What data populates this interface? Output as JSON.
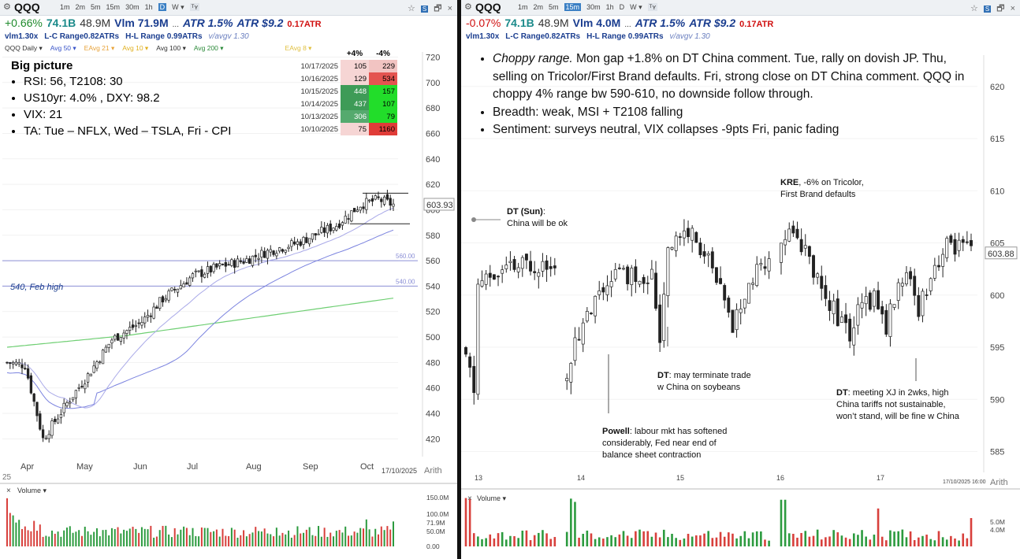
{
  "left": {
    "symbol": "QQQ",
    "toolbar": {
      "timeframes": [
        "1m",
        "2m",
        "5m",
        "15m",
        "30m",
        "1h",
        "D",
        "W"
      ],
      "active": "D",
      "menu_label": "W ▾",
      "chart_type_label": "ᵀʏ",
      "save_label": "S",
      "star": "☆",
      "restore": "🗗",
      "close": "×"
    },
    "stats": {
      "change": "+0.66%",
      "mktcap": "74.1B",
      "volume": "48.9M",
      "vlm": "Vlm 71.9M",
      "dots": "...",
      "atr": "ATR 1.5%",
      "atr_dollar": "ATR $9.2",
      "atr_ratio": "0.17ATR"
    },
    "substats": {
      "rvol": "vlm1.30x",
      "lc": "L-C Range0.82ATRs",
      "hl": "H-L Range 0.99ATRs",
      "avgv": "v/avgv 1.30"
    },
    "ma_legend": {
      "daily": "QQQ Daily ▾",
      "avg50": "Avg 50 ▾",
      "eavg21": "EAvg 21 ▾",
      "avg10": "Avg 10 ▾",
      "avg100": "Avg 100 ▾",
      "avg200": "Avg 200 ▾",
      "eavg8": "EAvg 8 ▾"
    },
    "big_picture": {
      "heading": "Big picture",
      "items": [
        "RSI: 56, T2108: 30",
        "US10yr: 4.0% , DXY: 98.2",
        "VIX: 21",
        "TA: Tue – NFLX, Wed – TSLA, Fri - CPI"
      ]
    },
    "perf_table": {
      "headers": [
        "+4%",
        "-4%"
      ],
      "rows": [
        {
          "date": "10/17/2025",
          "up": "105",
          "down": "229",
          "upc": "#f6d5d4",
          "downc": "#f2c4c2"
        },
        {
          "date": "10/16/2025",
          "up": "129",
          "down": "534",
          "upc": "#f6d5d4",
          "downc": "#e45450"
        },
        {
          "date": "10/15/2025",
          "up": "448",
          "down": "157",
          "upc": "#3e9b57",
          "downc": "#22dd2a"
        },
        {
          "date": "10/14/2025",
          "up": "437",
          "down": "107",
          "upc": "#3e9b57",
          "downc": "#22dd2a"
        },
        {
          "date": "10/13/2025",
          "up": "306",
          "down": "79",
          "upc": "#55aa6e",
          "downc": "#22dd2a"
        },
        {
          "date": "10/10/2025",
          "up": "75",
          "down": "1160",
          "upc": "#f6d5d4",
          "downc": "#e03c38"
        }
      ]
    },
    "annotation_feb_high": "540, Feb high",
    "price_label": "603.93",
    "footer_date": "17/10/2025",
    "footer_scale": "Arith",
    "footer_num": "25",
    "volume_title": "Volume ▾",
    "volume_close": "×",
    "volume_axis": [
      "150.0M",
      "100.0M",
      "71.9M",
      "50.0M",
      "0.00"
    ],
    "chart_data": {
      "type": "candlestick",
      "y_ticks": [
        720,
        700,
        680,
        660,
        640,
        620,
        600,
        580,
        560,
        540,
        520,
        500,
        480,
        460,
        440,
        420
      ],
      "ylim": [
        406,
        724
      ],
      "x_labels": [
        "Apr",
        "May",
        "Jun",
        "Jul",
        "Aug",
        "Sep",
        "Oct"
      ],
      "hlines": [
        {
          "value": 560,
          "label": "560.00"
        },
        {
          "value": 540,
          "label": "540.00"
        }
      ],
      "anchors": [
        [
          0,
          480
        ],
        [
          6,
          478
        ],
        [
          12,
          420
        ],
        [
          20,
          448
        ],
        [
          27,
          470
        ],
        [
          35,
          498
        ],
        [
          45,
          512
        ],
        [
          52,
          530
        ],
        [
          62,
          548
        ],
        [
          72,
          556
        ],
        [
          79,
          560
        ],
        [
          88,
          568
        ],
        [
          97,
          574
        ],
        [
          110,
          588
        ],
        [
          118,
          604
        ],
        [
          124,
          608
        ],
        [
          129,
          604
        ]
      ],
      "volume_last": "71.9M"
    }
  },
  "right": {
    "symbol": "QQQ",
    "toolbar": {
      "timeframes": [
        "1m",
        "2m",
        "5m",
        "15m",
        "30m",
        "1h",
        "D",
        "W"
      ],
      "active": "15m",
      "menu_label": "W ▾",
      "chart_type_label": "ᵀʏ",
      "save_label": "S",
      "star": "☆",
      "restore": "🗗",
      "close": "×"
    },
    "stats": {
      "change": "-0.07%",
      "mktcap": "74.1B",
      "volume": "48.9M",
      "vlm": "Vlm 4.0M",
      "dots": "...",
      "atr": "ATR 1.5%",
      "atr_dollar": "ATR $9.2",
      "atr_ratio": "0.17ATR"
    },
    "substats": {
      "rvol": "vlm1.30x",
      "lc": "L-C Range0.82ATRs",
      "hl": "H-L Range 0.99ATRs",
      "avgv": "v/avgv 1.30"
    },
    "bullets": {
      "b1_italic": "Choppy range.",
      "b1_rest": " Mon gap +1.8% on DT China comment.  Tue, rally on dovish JP. Thu, selling on Tricolor/First Brand defaults.  Fri, strong close on DT China comment.  QQQ in choppy 4% range bw 590-610, no downside follow through.",
      "b2": "Breadth: weak, MSI + T2108 falling",
      "b3": "Sentiment: surveys neutral, VIX collapses -9pts Fri, panic fading"
    },
    "notes": {
      "dt_sun_b": "DT (Sun)",
      "dt_sun_rest": ":",
      "dt_sun_2": "China will be ok",
      "kre_b": "KRE",
      "kre_1": ", -6% on Tricolor,",
      "kre_2": "First Brand defaults",
      "dt2_b": "DT",
      "dt2_1": ": may terminate trade",
      "dt2_2": "w China on soybeans",
      "powell_b": "Powell",
      "powell_1": ": labour mkt has softened",
      "powell_2": "considerably, Fed near end of",
      "powell_3": "balance sheet contraction",
      "dt3_b": "DT",
      "dt3_1": ": meeting XJ in 2wks, high",
      "dt3_2": "China tariffs not sustainable,",
      "dt3_3": "won’t stand, will be fine w China"
    },
    "price_label": "603.88",
    "footer_date": "17/10/2025 16:00",
    "footer_scale": "Arith",
    "volume_title": "Volume ▾",
    "volume_close": "×",
    "volume_axis": [
      "5.0M",
      "4.0M"
    ],
    "chart_data": {
      "type": "candlestick",
      "y_ticks": [
        620,
        615,
        610,
        605,
        600,
        595,
        590,
        585
      ],
      "ylim": [
        583,
        623
      ],
      "x_labels": [
        "13",
        "14",
        "15",
        "16",
        "17"
      ],
      "anchors": [
        [
          0,
          594
        ],
        [
          2,
          591
        ],
        [
          3,
          601
        ],
        [
          8,
          602
        ],
        [
          16,
          603
        ],
        [
          22,
          603.5
        ],
        [
          23,
          null
        ],
        [
          24,
          591
        ],
        [
          26,
          594
        ],
        [
          28,
          596
        ],
        [
          36,
          602
        ],
        [
          46,
          602
        ],
        [
          48,
          596
        ],
        [
          50,
          605
        ],
        [
          56,
          606
        ],
        [
          60,
          603
        ],
        [
          64,
          599
        ],
        [
          66,
          597
        ],
        [
          70,
          601
        ],
        [
          74,
          603
        ],
        [
          76,
          603
        ],
        [
          77,
          null
        ],
        [
          78,
          605
        ],
        [
          81,
          607
        ],
        [
          84,
          604
        ],
        [
          88,
          601
        ],
        [
          92,
          598
        ],
        [
          95,
          596
        ],
        [
          98,
          599
        ],
        [
          101,
          600
        ],
        [
          104,
          597
        ],
        [
          108,
          602
        ],
        [
          112,
          599
        ],
        [
          116,
          603
        ],
        [
          120,
          605
        ],
        [
          124,
          604
        ]
      ],
      "volume_last": "4.0M"
    }
  }
}
